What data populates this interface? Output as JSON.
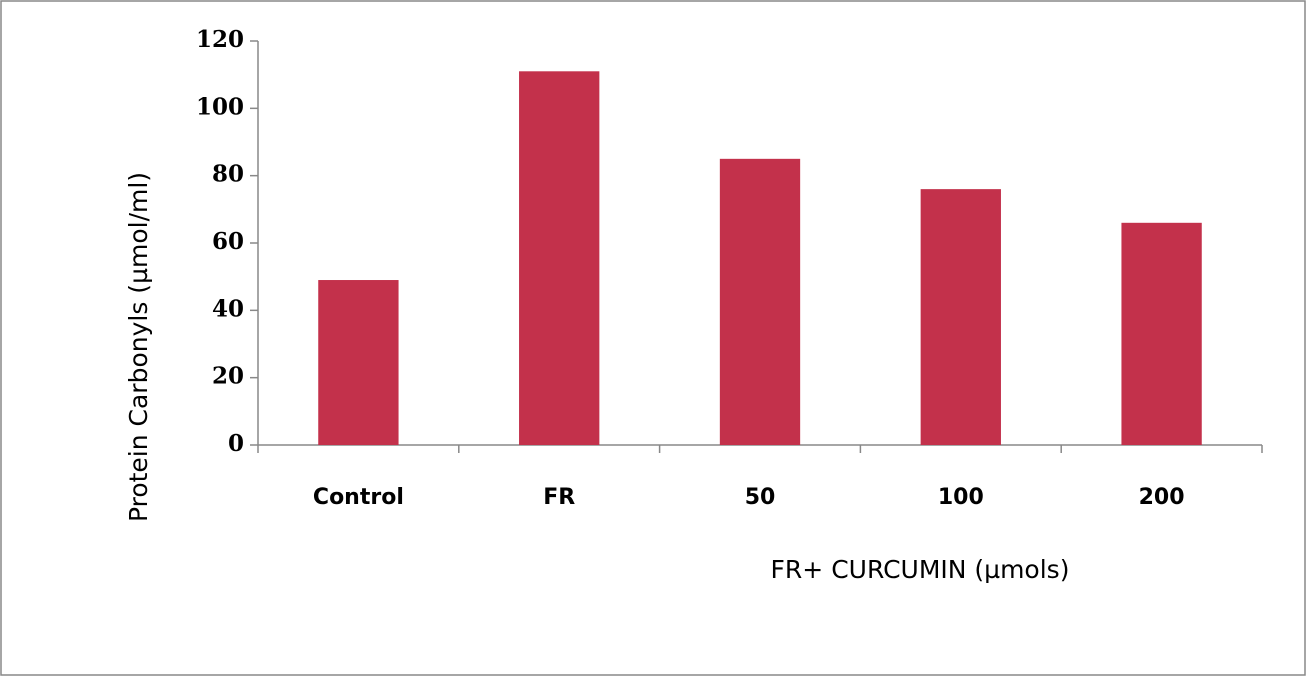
{
  "chart_data": {
    "type": "bar",
    "x_label": "FR+ CURCUMIN (µmols)",
    "y_label": "Protein Carbonyls (µmol/ml)",
    "categories": [
      "Control",
      "FR",
      "50",
      "100",
      "200"
    ],
    "values": [
      49,
      111,
      85,
      76,
      66
    ],
    "color": "#c3314b",
    "ylim": [
      0,
      120
    ],
    "yticks": [
      0,
      20,
      40,
      60,
      80,
      100,
      120
    ],
    "grid": false
  }
}
